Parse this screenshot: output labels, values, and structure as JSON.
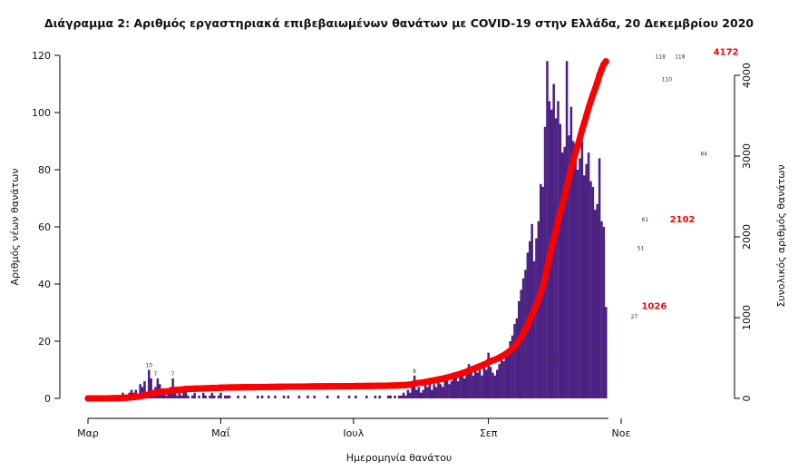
{
  "chart_data": {
    "type": "bar+line",
    "title": "Διάγραμμα 2: Αριθμός εργαστηριακά επιβεβαιωμένων θανάτων με COVID-19 στην Ελλάδα, 20 Δεκεμβρίου 2020",
    "xlabel": "Ημερομηνία θανάτου",
    "ylabel_left": "Αριθμός νέων θανάτων",
    "ylabel_right": "Συνολικός αριθμός θανάτων",
    "x_ticks": [
      "Μαρ",
      "Μαΐ",
      "Ιουλ",
      "Σεπ",
      "Νοε"
    ],
    "y_left_ticks": [
      0,
      20,
      40,
      60,
      80,
      100,
      120
    ],
    "y_left_lim": [
      0,
      120
    ],
    "y_right_ticks": [
      0,
      1000,
      2000,
      3000,
      4000
    ],
    "y_right_lim": [
      0,
      4200
    ],
    "bar_color": "#4b2283",
    "line_color": "#ff0000",
    "start_date": "2020-03-01",
    "end_date": "2020-12-20",
    "daily_deaths": [
      0,
      0,
      0,
      0,
      0,
      0,
      0,
      0,
      0,
      0,
      1,
      0,
      1,
      1,
      0,
      1,
      2,
      1,
      1,
      2,
      3,
      2,
      3,
      1,
      5,
      4,
      6,
      2,
      10,
      7,
      3,
      4,
      7,
      5,
      2,
      3,
      1,
      2,
      4,
      7,
      3,
      1,
      2,
      1,
      4,
      3,
      1,
      0,
      1,
      2,
      0,
      1,
      0,
      2,
      1,
      0,
      1,
      2,
      1,
      0,
      1,
      2,
      0,
      1,
      1,
      1,
      0,
      0,
      0,
      1,
      0,
      0,
      1,
      0,
      0,
      0,
      0,
      0,
      1,
      0,
      1,
      0,
      0,
      1,
      0,
      0,
      1,
      0,
      0,
      0,
      1,
      0,
      1,
      0,
      0,
      0,
      0,
      1,
      0,
      0,
      0,
      1,
      0,
      0,
      1,
      0,
      0,
      0,
      0,
      0,
      1,
      0,
      0,
      0,
      0,
      1,
      0,
      0,
      0,
      0,
      1,
      0,
      0,
      1,
      0,
      0,
      0,
      0,
      1,
      0,
      0,
      0,
      1,
      0,
      1,
      0,
      0,
      0,
      1,
      1,
      0,
      1,
      0,
      1,
      1,
      2,
      1,
      3,
      2,
      4,
      8,
      3,
      4,
      2,
      3,
      5,
      4,
      6,
      3,
      5,
      4,
      6,
      5,
      4,
      6,
      7,
      5,
      6,
      8,
      7,
      6,
      8,
      9,
      7,
      10,
      12,
      9,
      8,
      11,
      9,
      10,
      8,
      12,
      10,
      16,
      11,
      9,
      8,
      10,
      12,
      14,
      13,
      15,
      17,
      20,
      22,
      26,
      28,
      34,
      38,
      42,
      45,
      51,
      55,
      61,
      48,
      56,
      62,
      75,
      74,
      95,
      118,
      104,
      101,
      110,
      98,
      104,
      96,
      86,
      88,
      118,
      92,
      102,
      90,
      86,
      80,
      84,
      90,
      78,
      82,
      86,
      76,
      74,
      66,
      68,
      84,
      62,
      60,
      32
    ],
    "cumulative_labels": [
      {
        "date": "2020-12-20",
        "value": 4172
      },
      {
        "date": "2020-11-30",
        "value": 2102
      },
      {
        "date": "2020-11-17",
        "value": 1026
      }
    ],
    "data_labels": [
      {
        "date": "2020-03-29",
        "value": 10
      },
      {
        "date": "2020-04-01",
        "value": 7
      },
      {
        "date": "2020-04-09",
        "value": 7
      },
      {
        "date": "2020-07-29",
        "value": 8
      },
      {
        "date": "2020-10-01",
        "value": 12
      },
      {
        "date": "2020-10-20",
        "value": 16
      },
      {
        "date": "2020-11-07",
        "value": 27
      },
      {
        "date": "2020-11-10",
        "value": 51
      },
      {
        "date": "2020-11-12",
        "value": 61
      },
      {
        "date": "2020-11-19",
        "value": 118
      },
      {
        "date": "2020-11-22",
        "value": 110
      },
      {
        "date": "2020-11-28",
        "value": 118
      },
      {
        "date": "2020-12-09",
        "value": 84
      }
    ]
  }
}
